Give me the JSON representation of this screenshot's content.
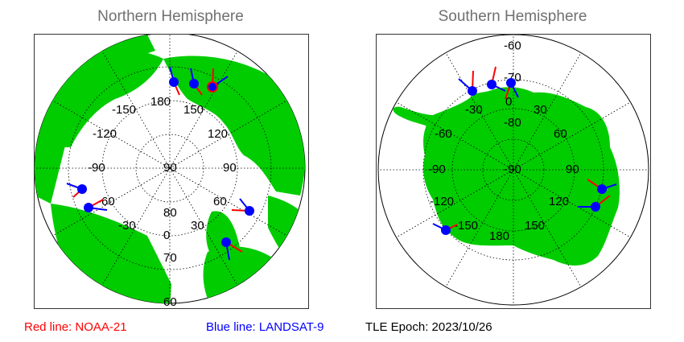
{
  "north": {
    "title": "Northern Hemisphere",
    "lon_labels": [
      "-150",
      "180",
      "150",
      "-120",
      "120",
      "-90",
      "90",
      "-60",
      "60",
      "-30",
      "30",
      "0"
    ],
    "lat_labels": [
      "90",
      "80",
      "70",
      "60"
    ]
  },
  "south": {
    "title": "Southern Hemisphere",
    "lon_labels": [
      "-30",
      "0",
      "30",
      "-60",
      "60",
      "-90",
      "90",
      "-120",
      "120",
      "-150",
      "180",
      "150"
    ],
    "lat_labels": [
      "-60",
      "-70",
      "-80",
      "-90"
    ]
  },
  "legend": {
    "red_label": "Red line: NOAA-21",
    "blue_label": "Blue line: LANDSAT-9",
    "epoch_label": "TLE Epoch: 2023/10/26"
  },
  "colors": {
    "land": "#00cc00",
    "ocean": "#ffffff",
    "noaa21": "#ff0000",
    "landsat9": "#0000ff",
    "title_gray": "#707070"
  }
}
